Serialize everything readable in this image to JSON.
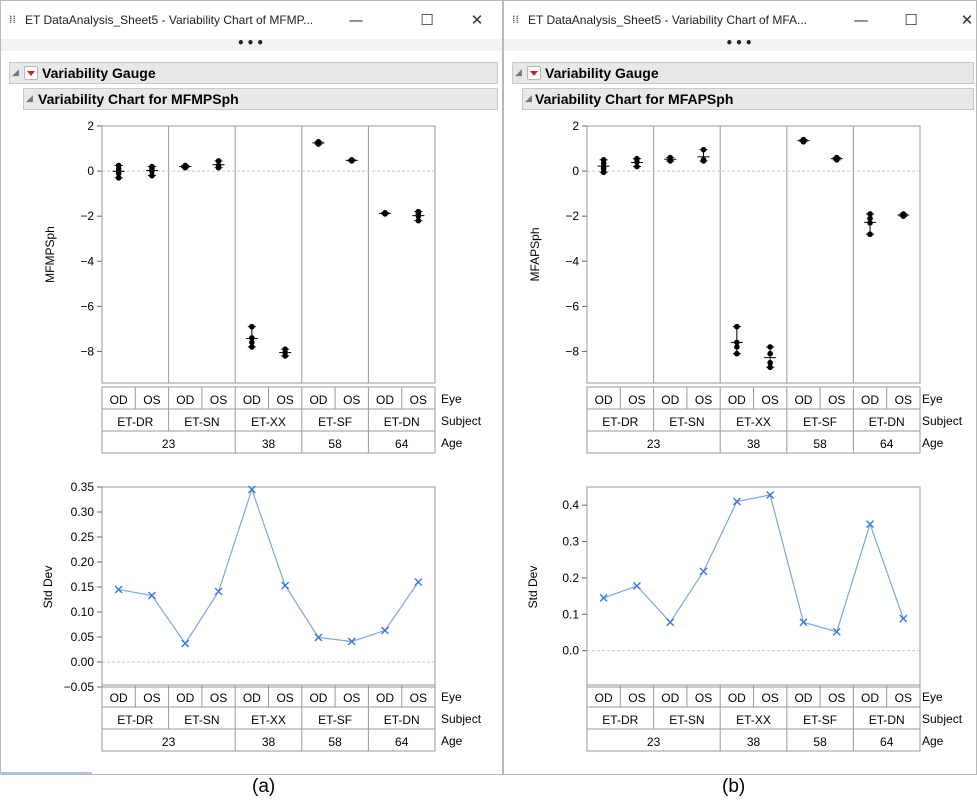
{
  "windows": [
    {
      "id": "a",
      "title": "ET DataAnalysis_Sheet5 - Variability Chart of MFMP...",
      "outline_title": "Variability Gauge",
      "chart_title": "Variability Chart for MFMPSph",
      "caption": "(a)"
    },
    {
      "id": "b",
      "title": "ET DataAnalysis_Sheet5 - Variability Chart of MFA...",
      "outline_title": "Variability Gauge",
      "chart_title": "Variability Chart for MFAPSph",
      "caption": "(b)"
    }
  ],
  "window_controls": {
    "minimize": "—",
    "maximize": "☐",
    "close": "✕",
    "more": "•••"
  },
  "icons": {
    "app": "data-table-icon",
    "disclosure": "triangle-icon",
    "menu": "red-popup-menu-icon"
  },
  "colors": {
    "stddev_line": "#7aa8e6",
    "stddev_marker": "#3b78e0",
    "points": "#000000",
    "zero_line": "#bbbbbb"
  },
  "chart_data": [
    {
      "type": "scatter",
      "title": "Variability Chart for MFMPSph",
      "ylabel": "MFMPSph",
      "ylim": [
        -9.4,
        2
      ],
      "yticks": [
        2,
        0,
        -2,
        -4,
        -6,
        -8
      ],
      "eye": [
        "OD",
        "OS",
        "OD",
        "OS",
        "OD",
        "OS",
        "OD",
        "OS",
        "OD",
        "OS"
      ],
      "subject": [
        "ET-DR",
        "ET-SN",
        "ET-XX",
        "ET-SF",
        "ET-DN"
      ],
      "age": [
        {
          "label": "23",
          "span": 2
        },
        {
          "label": "38",
          "span": 1
        },
        {
          "label": "58",
          "span": 1
        },
        {
          "label": "64",
          "span": 1
        }
      ],
      "row_labels": [
        "Eye",
        "Subject",
        "Age"
      ],
      "groups": [
        {
          "values": [
            -0.3,
            -0.1,
            0.0,
            0.1,
            0.25
          ]
        },
        {
          "values": [
            -0.2,
            0.0,
            0.1,
            0.2
          ]
        },
        {
          "values": [
            0.15,
            0.25
          ]
        },
        {
          "values": [
            0.15,
            0.25,
            0.45
          ]
        },
        {
          "values": [
            -6.9,
            -7.4,
            -7.6,
            -7.8
          ]
        },
        {
          "values": [
            -7.9,
            -8.05,
            -8.2
          ]
        },
        {
          "values": [
            1.2,
            1.3
          ]
        },
        {
          "values": [
            0.45,
            0.5
          ]
        },
        {
          "values": [
            -1.9,
            -1.85
          ]
        },
        {
          "values": [
            -1.8,
            -1.9,
            -2.0,
            -2.2
          ]
        }
      ]
    },
    {
      "type": "line",
      "ylabel": "Std Dev",
      "ylim": [
        -0.05,
        0.35
      ],
      "yticks": [
        0.35,
        0.3,
        0.25,
        0.2,
        0.15,
        0.1,
        0.05,
        0.0,
        -0.05
      ],
      "ytick_labels": [
        "0.35",
        "0.30",
        "0.25",
        "0.20",
        "0.15",
        "0.10",
        "0.05",
        "0.00",
        "−0.05"
      ],
      "eye": [
        "OD",
        "OS",
        "OD",
        "OS",
        "OD",
        "OS",
        "OD",
        "OS",
        "OD",
        "OS"
      ],
      "subject": [
        "ET-DR",
        "ET-SN",
        "ET-XX",
        "ET-SF",
        "ET-DN"
      ],
      "age": [
        {
          "label": "23",
          "span": 2
        },
        {
          "label": "38",
          "span": 1
        },
        {
          "label": "58",
          "span": 1
        },
        {
          "label": "64",
          "span": 1
        }
      ],
      "row_labels": [
        "Eye",
        "Subject",
        "Age"
      ],
      "values": [
        0.145,
        0.133,
        0.037,
        0.141,
        0.345,
        0.153,
        0.049,
        0.041,
        0.063,
        0.16
      ]
    },
    {
      "type": "scatter",
      "title": "Variability Chart for MFAPSph",
      "ylabel": "MFAPSph",
      "ylim": [
        -9.4,
        2
      ],
      "yticks": [
        2,
        0,
        -2,
        -4,
        -6,
        -8
      ],
      "eye": [
        "OD",
        "OS",
        "OD",
        "OS",
        "OD",
        "OS",
        "OD",
        "OS",
        "OD",
        "OS"
      ],
      "subject": [
        "ET-DR",
        "ET-SN",
        "ET-XX",
        "ET-SF",
        "ET-DN"
      ],
      "age": [
        {
          "label": "23",
          "span": 2
        },
        {
          "label": "38",
          "span": 1
        },
        {
          "label": "58",
          "span": 1
        },
        {
          "label": "64",
          "span": 1
        }
      ],
      "row_labels": [
        "Eye",
        "Subject",
        "Age"
      ],
      "groups": [
        {
          "values": [
            -0.05,
            0.1,
            0.2,
            0.35,
            0.5
          ]
        },
        {
          "values": [
            0.2,
            0.4,
            0.55
          ]
        },
        {
          "values": [
            0.45,
            0.6
          ]
        },
        {
          "values": [
            0.45,
            0.5,
            0.95
          ]
        },
        {
          "values": [
            -6.9,
            -7.6,
            -7.8,
            -8.1
          ]
        },
        {
          "values": [
            -7.8,
            -8.1,
            -8.5,
            -8.7
          ]
        },
        {
          "values": [
            1.3,
            1.4
          ]
        },
        {
          "values": [
            0.5,
            0.6
          ]
        },
        {
          "values": [
            -1.9,
            -2.1,
            -2.3,
            -2.8
          ]
        },
        {
          "values": [
            -1.9,
            -2.0
          ]
        }
      ]
    },
    {
      "type": "line",
      "ylabel": "Std Dev",
      "ylim": [
        -0.1,
        0.45
      ],
      "yticks": [
        0.4,
        0.3,
        0.2,
        0.1,
        0.0
      ],
      "ytick_labels": [
        "0.4",
        "0.3",
        "0.2",
        "0.1",
        "0.0"
      ],
      "eye": [
        "OD",
        "OS",
        "OD",
        "OS",
        "OD",
        "OS",
        "OD",
        "OS",
        "OD",
        "OS"
      ],
      "subject": [
        "ET-DR",
        "ET-SN",
        "ET-XX",
        "ET-SF",
        "ET-DN"
      ],
      "age": [
        {
          "label": "23",
          "span": 2
        },
        {
          "label": "38",
          "span": 1
        },
        {
          "label": "58",
          "span": 1
        },
        {
          "label": "64",
          "span": 1
        }
      ],
      "row_labels": [
        "Eye",
        "Subject",
        "Age"
      ],
      "values": [
        0.145,
        0.178,
        0.078,
        0.218,
        0.41,
        0.428,
        0.078,
        0.052,
        0.348,
        0.088
      ]
    }
  ]
}
